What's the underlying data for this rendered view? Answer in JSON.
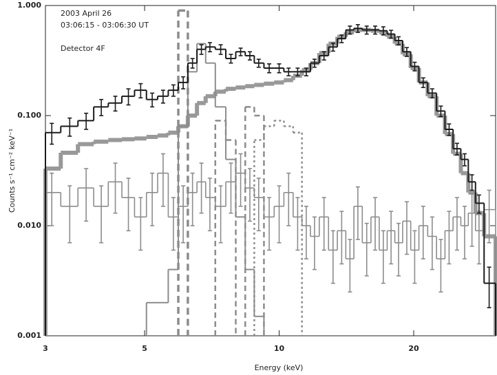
{
  "chart_data": {
    "type": "step",
    "annotations": [
      "2003 April 26",
      "03:06:15 - 03:06:30 UT",
      "Detector 4F"
    ],
    "xlabel": "Energy (keV)",
    "ylabel": "Counts s⁻¹ cm⁻² keV⁻¹",
    "xscale": "log",
    "yscale": "log",
    "xlim": [
      3,
      30.5
    ],
    "ylim": [
      0.001,
      1
    ],
    "xticks": [
      3,
      5,
      10,
      20
    ],
    "yticks": [
      {
        "value": 0.001,
        "label": "0.001"
      },
      {
        "value": 0.01,
        "label": "0.010"
      },
      {
        "value": 0.1,
        "label": "0.100"
      },
      {
        "value": 1,
        "label": "1.000"
      }
    ],
    "x": [
      3.1,
      3.4,
      3.7,
      4.0,
      4.3,
      4.6,
      4.9,
      5.2,
      5.5,
      5.8,
      6.1,
      6.4,
      6.7,
      7.0,
      7.4,
      7.8,
      8.2,
      8.6,
      9.0,
      9.5,
      10.0,
      10.5,
      11.0,
      11.5,
      12.0,
      12.6,
      13.2,
      13.8,
      14.4,
      15.0,
      15.7,
      16.4,
      17.1,
      17.8,
      18.5,
      19.3,
      20.1,
      21.0,
      22.0,
      23.0,
      24.0,
      25.0,
      26.0,
      27.0,
      28.0,
      29.5
    ],
    "series": [
      {
        "color": "#999999",
        "width": 6,
        "dash": "none",
        "values": [
          0.033,
          0.046,
          0.055,
          0.058,
          0.06,
          0.061,
          0.062,
          0.064,
          0.066,
          0.07,
          0.08,
          0.1,
          0.13,
          0.15,
          0.165,
          0.175,
          0.18,
          0.185,
          0.19,
          0.195,
          0.2,
          0.21,
          0.23,
          0.26,
          0.3,
          0.37,
          0.45,
          0.52,
          0.57,
          0.6,
          0.6,
          0.59,
          0.57,
          0.52,
          0.45,
          0.36,
          0.27,
          0.2,
          0.15,
          0.1,
          0.068,
          0.045,
          0.03,
          0.02,
          0.013,
          0.008
        ]
      },
      {
        "color": "#8c8c8c",
        "width": 1.6,
        "dash": "none",
        "values": [
          0.02,
          0.015,
          0.022,
          0.015,
          0.025,
          0.018,
          0.012,
          0.02,
          0.03,
          0.012,
          0.015,
          0.02,
          0.025,
          0.018,
          0.015,
          0.025,
          0.03,
          0.022,
          0.018,
          0.012,
          0.015,
          0.02,
          0.012,
          0.01,
          0.008,
          0.012,
          0.006,
          0.009,
          0.005,
          0.015,
          0.007,
          0.012,
          0.006,
          0.009,
          0.007,
          0.011,
          0.006,
          0.01,
          0.008,
          0.005,
          0.009,
          0.012,
          0.01,
          0.013,
          0.009,
          0.014
        ],
        "errors": [
          0.01,
          0.008,
          0.011,
          0.008,
          0.012,
          0.009,
          0.006,
          0.01,
          0.015,
          0.006,
          0.008,
          0.01,
          0.012,
          0.009,
          0.008,
          0.012,
          0.015,
          0.011,
          0.009,
          0.006,
          0.008,
          0.01,
          0.006,
          0.005,
          0.004,
          0.006,
          0.003,
          0.0045,
          0.0025,
          0.0075,
          0.0035,
          0.006,
          0.003,
          0.0045,
          0.0035,
          0.0055,
          0.003,
          0.005,
          0.004,
          0.0025,
          0.0045,
          0.006,
          0.005,
          0.0065,
          0.0045,
          0.007
        ]
      },
      {
        "color": "#8c8c8c",
        "width": 2,
        "dash": "none",
        "values": [
          null,
          null,
          null,
          null,
          null,
          null,
          null,
          0.002,
          0.002,
          0.004,
          0.08,
          0.25,
          0.45,
          0.3,
          0.12,
          0.04,
          0.012,
          0.004,
          0.0015,
          null,
          null,
          null,
          null,
          null,
          null,
          null,
          null,
          null,
          null,
          null,
          null,
          null,
          null,
          null,
          null,
          null,
          null,
          null,
          null,
          null,
          null,
          null,
          null,
          null,
          null,
          null
        ]
      },
      {
        "color": "#8c8c8c",
        "width": 3.5,
        "dash": "10 6",
        "values": [
          null,
          null,
          null,
          null,
          null,
          null,
          null,
          null,
          null,
          null,
          0.9,
          null,
          null,
          null,
          null,
          null,
          null,
          null,
          null,
          null,
          null,
          null,
          null,
          null,
          null,
          null,
          null,
          null,
          null,
          null,
          null,
          null,
          null,
          null,
          null,
          null,
          null,
          null,
          null,
          null,
          null,
          null,
          null,
          null,
          null,
          null
        ]
      },
      {
        "color": "#8c8c8c",
        "width": 2.5,
        "dash": "8 5",
        "values": [
          null,
          null,
          null,
          null,
          null,
          null,
          null,
          null,
          null,
          null,
          null,
          null,
          null,
          null,
          0.09,
          0.06,
          null,
          0.12,
          0.1,
          null,
          null,
          null,
          null,
          null,
          null,
          null,
          null,
          null,
          null,
          null,
          null,
          null,
          null,
          null,
          null,
          null,
          null,
          null,
          null,
          null,
          null,
          null,
          null,
          null,
          null,
          null
        ]
      },
      {
        "color": "#8c8c8c",
        "width": 2.5,
        "dash": "3 4",
        "values": [
          null,
          null,
          null,
          null,
          null,
          null,
          null,
          null,
          null,
          null,
          null,
          null,
          null,
          null,
          null,
          null,
          null,
          null,
          0.06,
          0.08,
          0.09,
          0.08,
          0.07,
          null,
          null,
          null,
          null,
          null,
          null,
          null,
          null,
          null,
          null,
          null,
          null,
          null,
          null,
          null,
          null,
          null,
          null,
          null,
          null,
          null,
          null,
          null
        ]
      },
      {
        "color": "#1a1a1a",
        "width": 2,
        "dash": "none",
        "values": [
          0.07,
          0.08,
          0.09,
          0.12,
          0.13,
          0.15,
          0.17,
          0.14,
          0.15,
          0.17,
          0.2,
          0.3,
          0.4,
          0.42,
          0.4,
          0.33,
          0.38,
          0.35,
          0.3,
          0.27,
          0.27,
          0.25,
          0.25,
          0.25,
          0.3,
          0.35,
          0.42,
          0.5,
          0.6,
          0.62,
          0.6,
          0.6,
          0.59,
          0.55,
          0.48,
          0.38,
          0.28,
          0.2,
          0.16,
          0.11,
          0.075,
          0.05,
          0.04,
          0.025,
          0.016,
          0.003
        ],
        "errors": [
          0.015,
          0.015,
          0.015,
          0.02,
          0.02,
          0.025,
          0.025,
          0.02,
          0.02,
          0.02,
          0.025,
          0.03,
          0.04,
          0.04,
          0.04,
          0.03,
          0.03,
          0.03,
          0.025,
          0.025,
          0.025,
          0.02,
          0.02,
          0.02,
          0.025,
          0.03,
          0.035,
          0.04,
          0.05,
          0.05,
          0.05,
          0.05,
          0.05,
          0.045,
          0.04,
          0.035,
          0.025,
          0.02,
          0.015,
          0.012,
          0.009,
          0.006,
          0.005,
          0.004,
          0.003,
          0.0012
        ]
      }
    ]
  }
}
